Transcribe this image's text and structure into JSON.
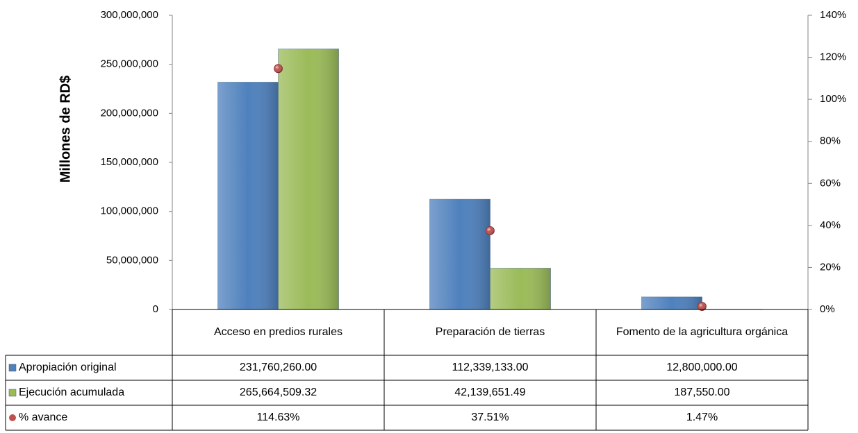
{
  "chart_data": {
    "type": "bar",
    "ylabel": "Millones de RD$",
    "categories": [
      "Acceso en predios rurales",
      "Preparación de tierras",
      "Fomento de la agricultura orgánica"
    ],
    "series": [
      {
        "name": "Apropiación original",
        "color": "#4f81bd",
        "type": "bar",
        "values": [
          231760260.0,
          112339133.0,
          12800000.0
        ],
        "value_labels": [
          "231,760,260.00",
          "112,339,133.00",
          "12,800,000.00"
        ]
      },
      {
        "name": "Ejecución acumulada",
        "color": "#9bbb59",
        "type": "bar",
        "values": [
          265664509.32,
          42139651.49,
          187550.0
        ],
        "value_labels": [
          "265,664,509.32",
          "42,139,651.49",
          "187,550.00"
        ]
      },
      {
        "name": "% avance",
        "color": "#c0504d",
        "type": "scatter",
        "axis": "y2",
        "values": [
          114.63,
          37.51,
          1.47
        ],
        "value_labels": [
          "114.63%",
          "37.51%",
          "1.47%"
        ]
      }
    ],
    "ylim": [
      0,
      300000000
    ],
    "yticks": [
      0,
      {
        "value": 50000000,
        "label": "50,000,000"
      },
      {
        "value": 100000000,
        "label": "100,000,000"
      },
      {
        "value": 150000000,
        "label": "150,000,000"
      },
      {
        "value": 200000000,
        "label": "200,000,000"
      },
      {
        "value": 250000000,
        "label": "250,000,000"
      },
      {
        "value": 300000000,
        "label": "300,000,000"
      }
    ],
    "y2lim": [
      0,
      140
    ],
    "y2ticks": [
      {
        "value": 0,
        "label": "0%"
      },
      {
        "value": 20,
        "label": "20%"
      },
      {
        "value": 40,
        "label": "40%"
      },
      {
        "value": 60,
        "label": "60%"
      },
      {
        "value": 80,
        "label": "80%"
      },
      {
        "value": 100,
        "label": "100%"
      },
      {
        "value": 120,
        "label": "120%"
      },
      {
        "value": 140,
        "label": "140%"
      }
    ],
    "grid": false
  }
}
